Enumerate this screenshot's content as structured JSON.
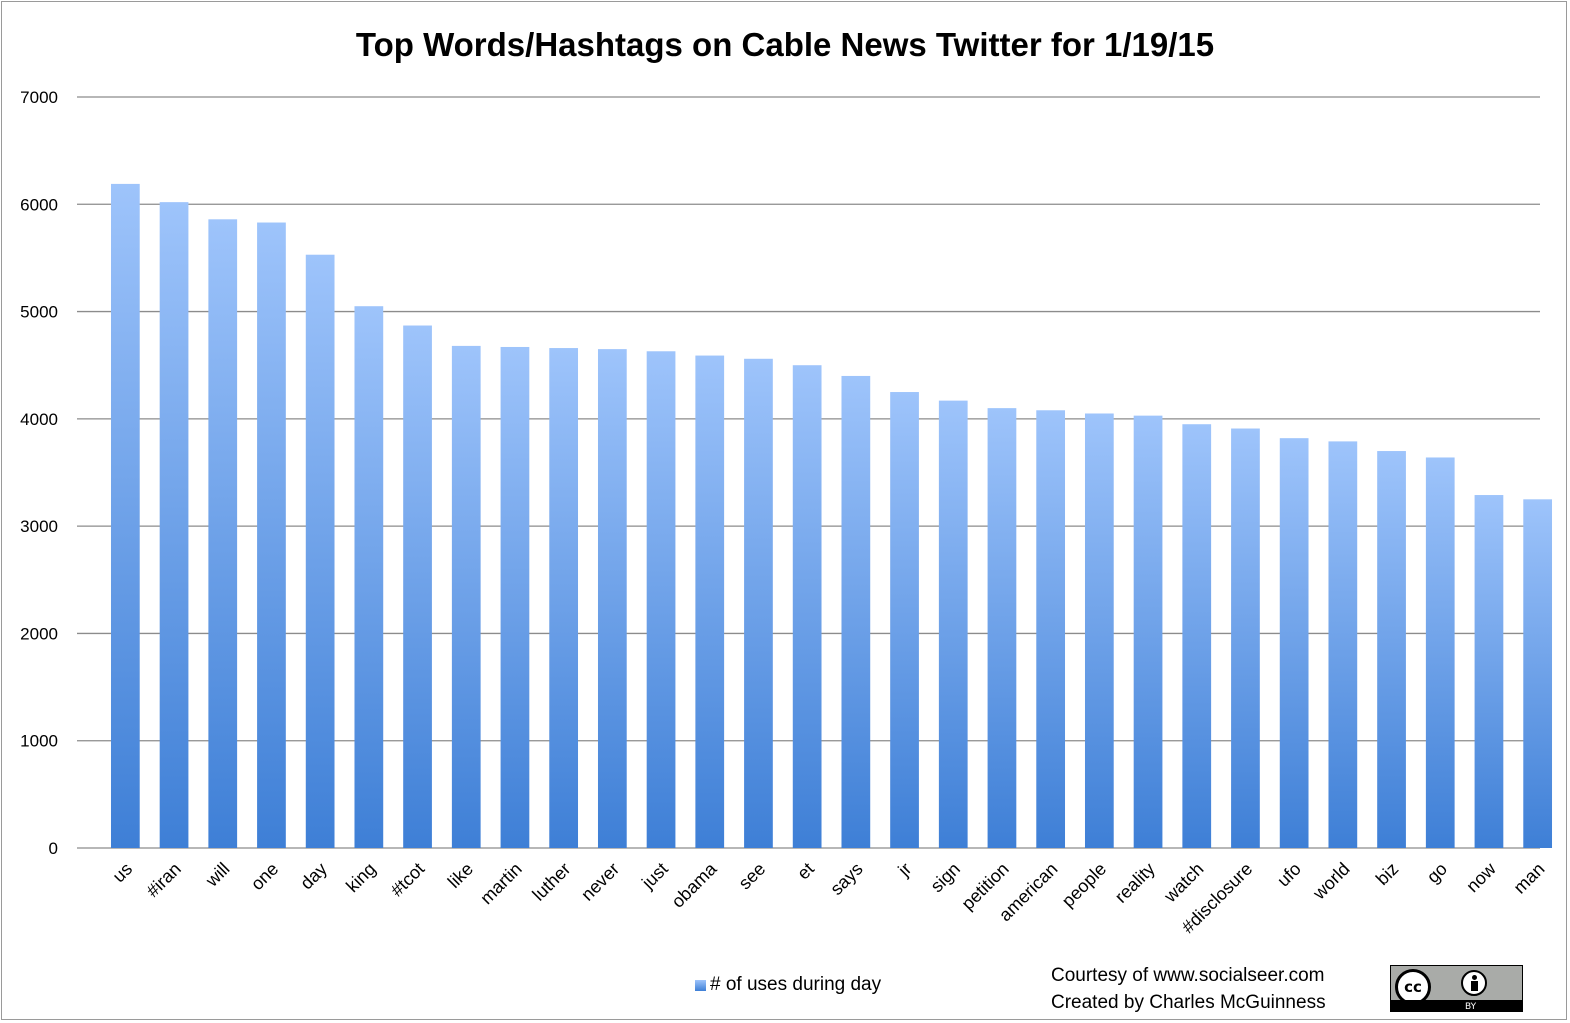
{
  "chart_data": {
    "type": "bar",
    "title": "Top Words/Hashtags on Cable News Twitter for 1/19/15",
    "xlabel": "",
    "ylabel": "",
    "ylim": [
      0,
      7000
    ],
    "yticks": [
      0,
      1000,
      2000,
      3000,
      4000,
      5000,
      6000,
      7000
    ],
    "grid": true,
    "legend_position": "bottom-center",
    "categories": [
      "us",
      "#iran",
      "will",
      "one",
      "day",
      "king",
      "#tcot",
      "like",
      "martin",
      "luther",
      "never",
      "just",
      "obama",
      "see",
      "et",
      "says",
      "jr",
      "sign",
      "petition",
      "american",
      "people",
      "reality",
      "watch",
      "#disclosure",
      "ufo",
      "world",
      "biz",
      "go",
      "now",
      "man"
    ],
    "series": [
      {
        "name": "# of uses during day",
        "values": [
          6190,
          6020,
          5860,
          5830,
          5530,
          5050,
          4870,
          4680,
          4670,
          4660,
          4650,
          4630,
          4590,
          4560,
          4500,
          4400,
          4250,
          4170,
          4100,
          4080,
          4050,
          4030,
          3950,
          3910,
          3820,
          3790,
          3700,
          3640,
          3290,
          3250
        ]
      }
    ],
    "colors": {
      "bar_top": "#9ec4fb",
      "bar_bottom": "#3e7fd6",
      "grid": "#8c8c8c"
    }
  },
  "footer": {
    "credit_line1": "Courtesy of www.socialseer.com",
    "credit_line2": "Created by Charles McGuinness",
    "license_badge": {
      "icon": "cc-by-icon",
      "cc_text": "cc",
      "by_text": "BY"
    }
  }
}
